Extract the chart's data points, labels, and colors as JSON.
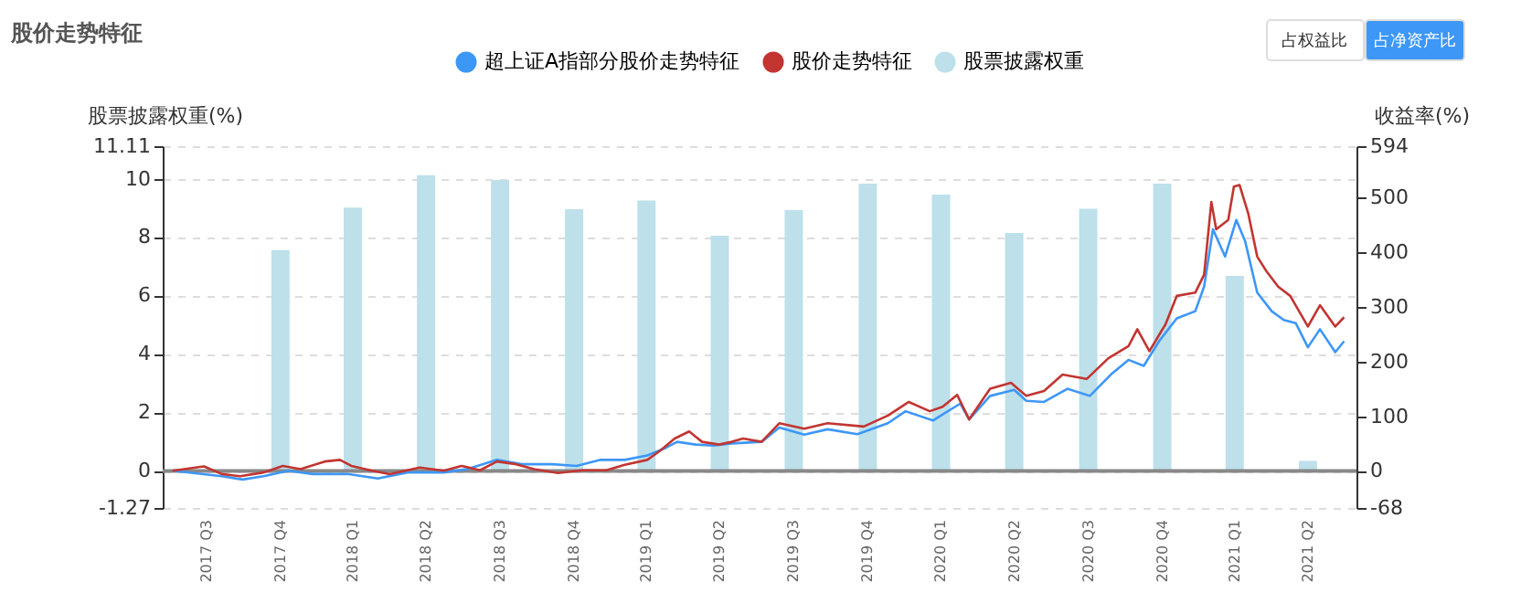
{
  "chart_data": {
    "type": "bar",
    "title": "股价走势特征",
    "annotations": [
      "占权益比",
      "占净资产比"
    ],
    "ylabel": "股票披露权重(%)",
    "y2label": "收益率(%)",
    "x": [
      "2017-12-31",
      "2018-03-31",
      "2018-06-30",
      "2018-09-30",
      "2018-12-31",
      "2019-03-31",
      "2019-06-30",
      "2019-09-30",
      "2019-12-31",
      "2020-03-31",
      "2020-06-30",
      "2020-09-30",
      "2020-12-31",
      "2021-03-31",
      "2021-06-30"
    ],
    "xlim": [
      "2017-08-18",
      "2021-08-18"
    ],
    "xticks": [
      {
        "value": "2017-09-30",
        "label": "2017 Q3"
      },
      {
        "value": "2017-12-31",
        "label": "2017 Q4"
      },
      {
        "value": "2018-03-31",
        "label": "2018 Q1"
      },
      {
        "value": "2018-06-30",
        "label": "2018 Q2"
      },
      {
        "value": "2018-09-30",
        "label": "2018 Q3"
      },
      {
        "value": "2018-12-31",
        "label": "2018 Q4"
      },
      {
        "value": "2019-03-31",
        "label": "2019 Q1"
      },
      {
        "value": "2019-06-30",
        "label": "2019 Q2"
      },
      {
        "value": "2019-09-30",
        "label": "2019 Q3"
      },
      {
        "value": "2019-12-31",
        "label": "2019 Q4"
      },
      {
        "value": "2020-03-31",
        "label": "2020 Q1"
      },
      {
        "value": "2020-06-30",
        "label": "2020 Q2"
      },
      {
        "value": "2020-09-30",
        "label": "2020 Q3"
      },
      {
        "value": "2020-12-31",
        "label": "2020 Q4"
      },
      {
        "value": "2021-03-31",
        "label": "2021 Q1"
      },
      {
        "value": "2021-06-30",
        "label": "2021 Q2"
      }
    ],
    "ylim": [
      -1.27,
      11.11
    ],
    "yticks": [
      -1.27,
      0,
      2,
      4,
      6,
      8,
      10,
      11.11
    ],
    "y2lim": [
      -68,
      594
    ],
    "y2ticks": [
      -68,
      0,
      100,
      200,
      300,
      400,
      500,
      594
    ],
    "grid": "y",
    "legend": "top",
    "marker": "none",
    "line_style": "solid",
    "ref_lines": [
      {
        "axis": "y",
        "value": 0,
        "color": "#888888"
      }
    ],
    "series": [
      {
        "name": "超上证A指部分股价走势特征",
        "type": "line",
        "axis": "y2",
        "color": "#3d97f6",
        "x": [
          "2017-08-19",
          "2017-10-19",
          "2017-11-14",
          "2017-12-10",
          "2018-01-10",
          "2018-02-09",
          "2018-03-26",
          "2018-05-01",
          "2018-06-07",
          "2018-07-22",
          "2018-08-20",
          "2018-09-26",
          "2018-10-27",
          "2018-12-04",
          "2019-01-03",
          "2019-02-02",
          "2019-03-04",
          "2019-04-01",
          "2019-04-24",
          "2019-05-08",
          "2019-05-31",
          "2019-06-22",
          "2019-07-15",
          "2019-08-21",
          "2019-09-12",
          "2019-10-13",
          "2019-11-11",
          "2019-12-18",
          "2020-01-25",
          "2020-02-16",
          "2020-03-21",
          "2020-04-02",
          "2020-04-24",
          "2020-05-05",
          "2020-05-31",
          "2020-06-30",
          "2020-07-15",
          "2020-08-06",
          "2020-09-04",
          "2020-10-02",
          "2020-10-28",
          "2020-11-19",
          "2020-12-08",
          "2020-12-27",
          "2021-01-18",
          "2021-02-10",
          "2021-02-21",
          "2021-03-04",
          "2021-03-19",
          "2021-04-02",
          "2021-04-13",
          "2021-04-28",
          "2021-05-16",
          "2021-05-31",
          "2021-06-15",
          "2021-06-30",
          "2021-07-15",
          "2021-08-03",
          "2021-08-14"
        ],
        "values": [
          0,
          -10,
          -16,
          -10,
          0,
          -6,
          -6,
          -14,
          -3,
          -3,
          3,
          20,
          12,
          12,
          9,
          20,
          20,
          28,
          42,
          53,
          48,
          46,
          50,
          53,
          79,
          66,
          76,
          67,
          87,
          109,
          92,
          103,
          123,
          94,
          137,
          148,
          128,
          126,
          150,
          137,
          176,
          203,
          192,
          237,
          279,
          292,
          337,
          442,
          392,
          459,
          420,
          326,
          292,
          276,
          270,
          226,
          259,
          217,
          237
        ]
      },
      {
        "name": "股价走势特征",
        "type": "line",
        "axis": "y2",
        "color": "#c23531",
        "x": [
          "2017-08-19",
          "2017-09-27",
          "2017-10-19",
          "2017-11-11",
          "2017-12-10",
          "2018-01-03",
          "2018-01-25",
          "2018-02-24",
          "2018-03-15",
          "2018-03-29",
          "2018-04-24",
          "2018-05-16",
          "2018-06-22",
          "2018-07-22",
          "2018-08-13",
          "2018-09-05",
          "2018-09-26",
          "2018-10-20",
          "2018-11-11",
          "2018-12-11",
          "2019-01-10",
          "2019-02-09",
          "2019-03-04",
          "2019-04-01",
          "2019-04-17",
          "2019-05-05",
          "2019-05-23",
          "2019-06-08",
          "2019-06-29",
          "2019-07-15",
          "2019-07-29",
          "2019-08-21",
          "2019-09-12",
          "2019-10-13",
          "2019-11-11",
          "2019-12-26",
          "2020-01-25",
          "2020-02-20",
          "2020-03-17",
          "2020-04-02",
          "2020-04-20",
          "2020-05-05",
          "2020-05-31",
          "2020-06-26",
          "2020-07-15",
          "2020-08-06",
          "2020-08-29",
          "2020-09-28",
          "2020-10-25",
          "2020-11-19",
          "2020-11-30",
          "2020-12-15",
          "2021-01-04",
          "2021-01-18",
          "2021-02-10",
          "2021-02-21",
          "2021-03-02",
          "2021-03-08",
          "2021-03-23",
          "2021-03-30",
          "2021-04-06",
          "2021-04-17",
          "2021-04-28",
          "2021-05-10",
          "2021-05-24",
          "2021-06-08",
          "2021-06-30",
          "2021-07-15",
          "2021-08-03",
          "2021-08-14"
        ],
        "values": [
          0,
          8,
          -6,
          -10,
          -3,
          9,
          3,
          17,
          20,
          9,
          0,
          -6,
          6,
          0,
          9,
          1,
          17,
          12,
          3,
          -4,
          1,
          1,
          11,
          20,
          37,
          59,
          72,
          53,
          48,
          53,
          59,
          53,
          87,
          77,
          87,
          81,
          101,
          126,
          109,
          117,
          139,
          94,
          150,
          161,
          137,
          146,
          176,
          168,
          206,
          228,
          259,
          219,
          268,
          320,
          326,
          359,
          492,
          442,
          459,
          520,
          523,
          470,
          392,
          364,
          337,
          320,
          264,
          303,
          264,
          281
        ]
      },
      {
        "name": "股票披露权重",
        "color": "#bde0eb",
        "values": [
          7.55,
          9.01,
          10.12,
          9.95,
          8.95,
          9.25,
          8.05,
          8.92,
          9.83,
          9.45,
          8.14,
          8.97,
          9.83,
          6.67,
          0.34
        ]
      }
    ]
  }
}
